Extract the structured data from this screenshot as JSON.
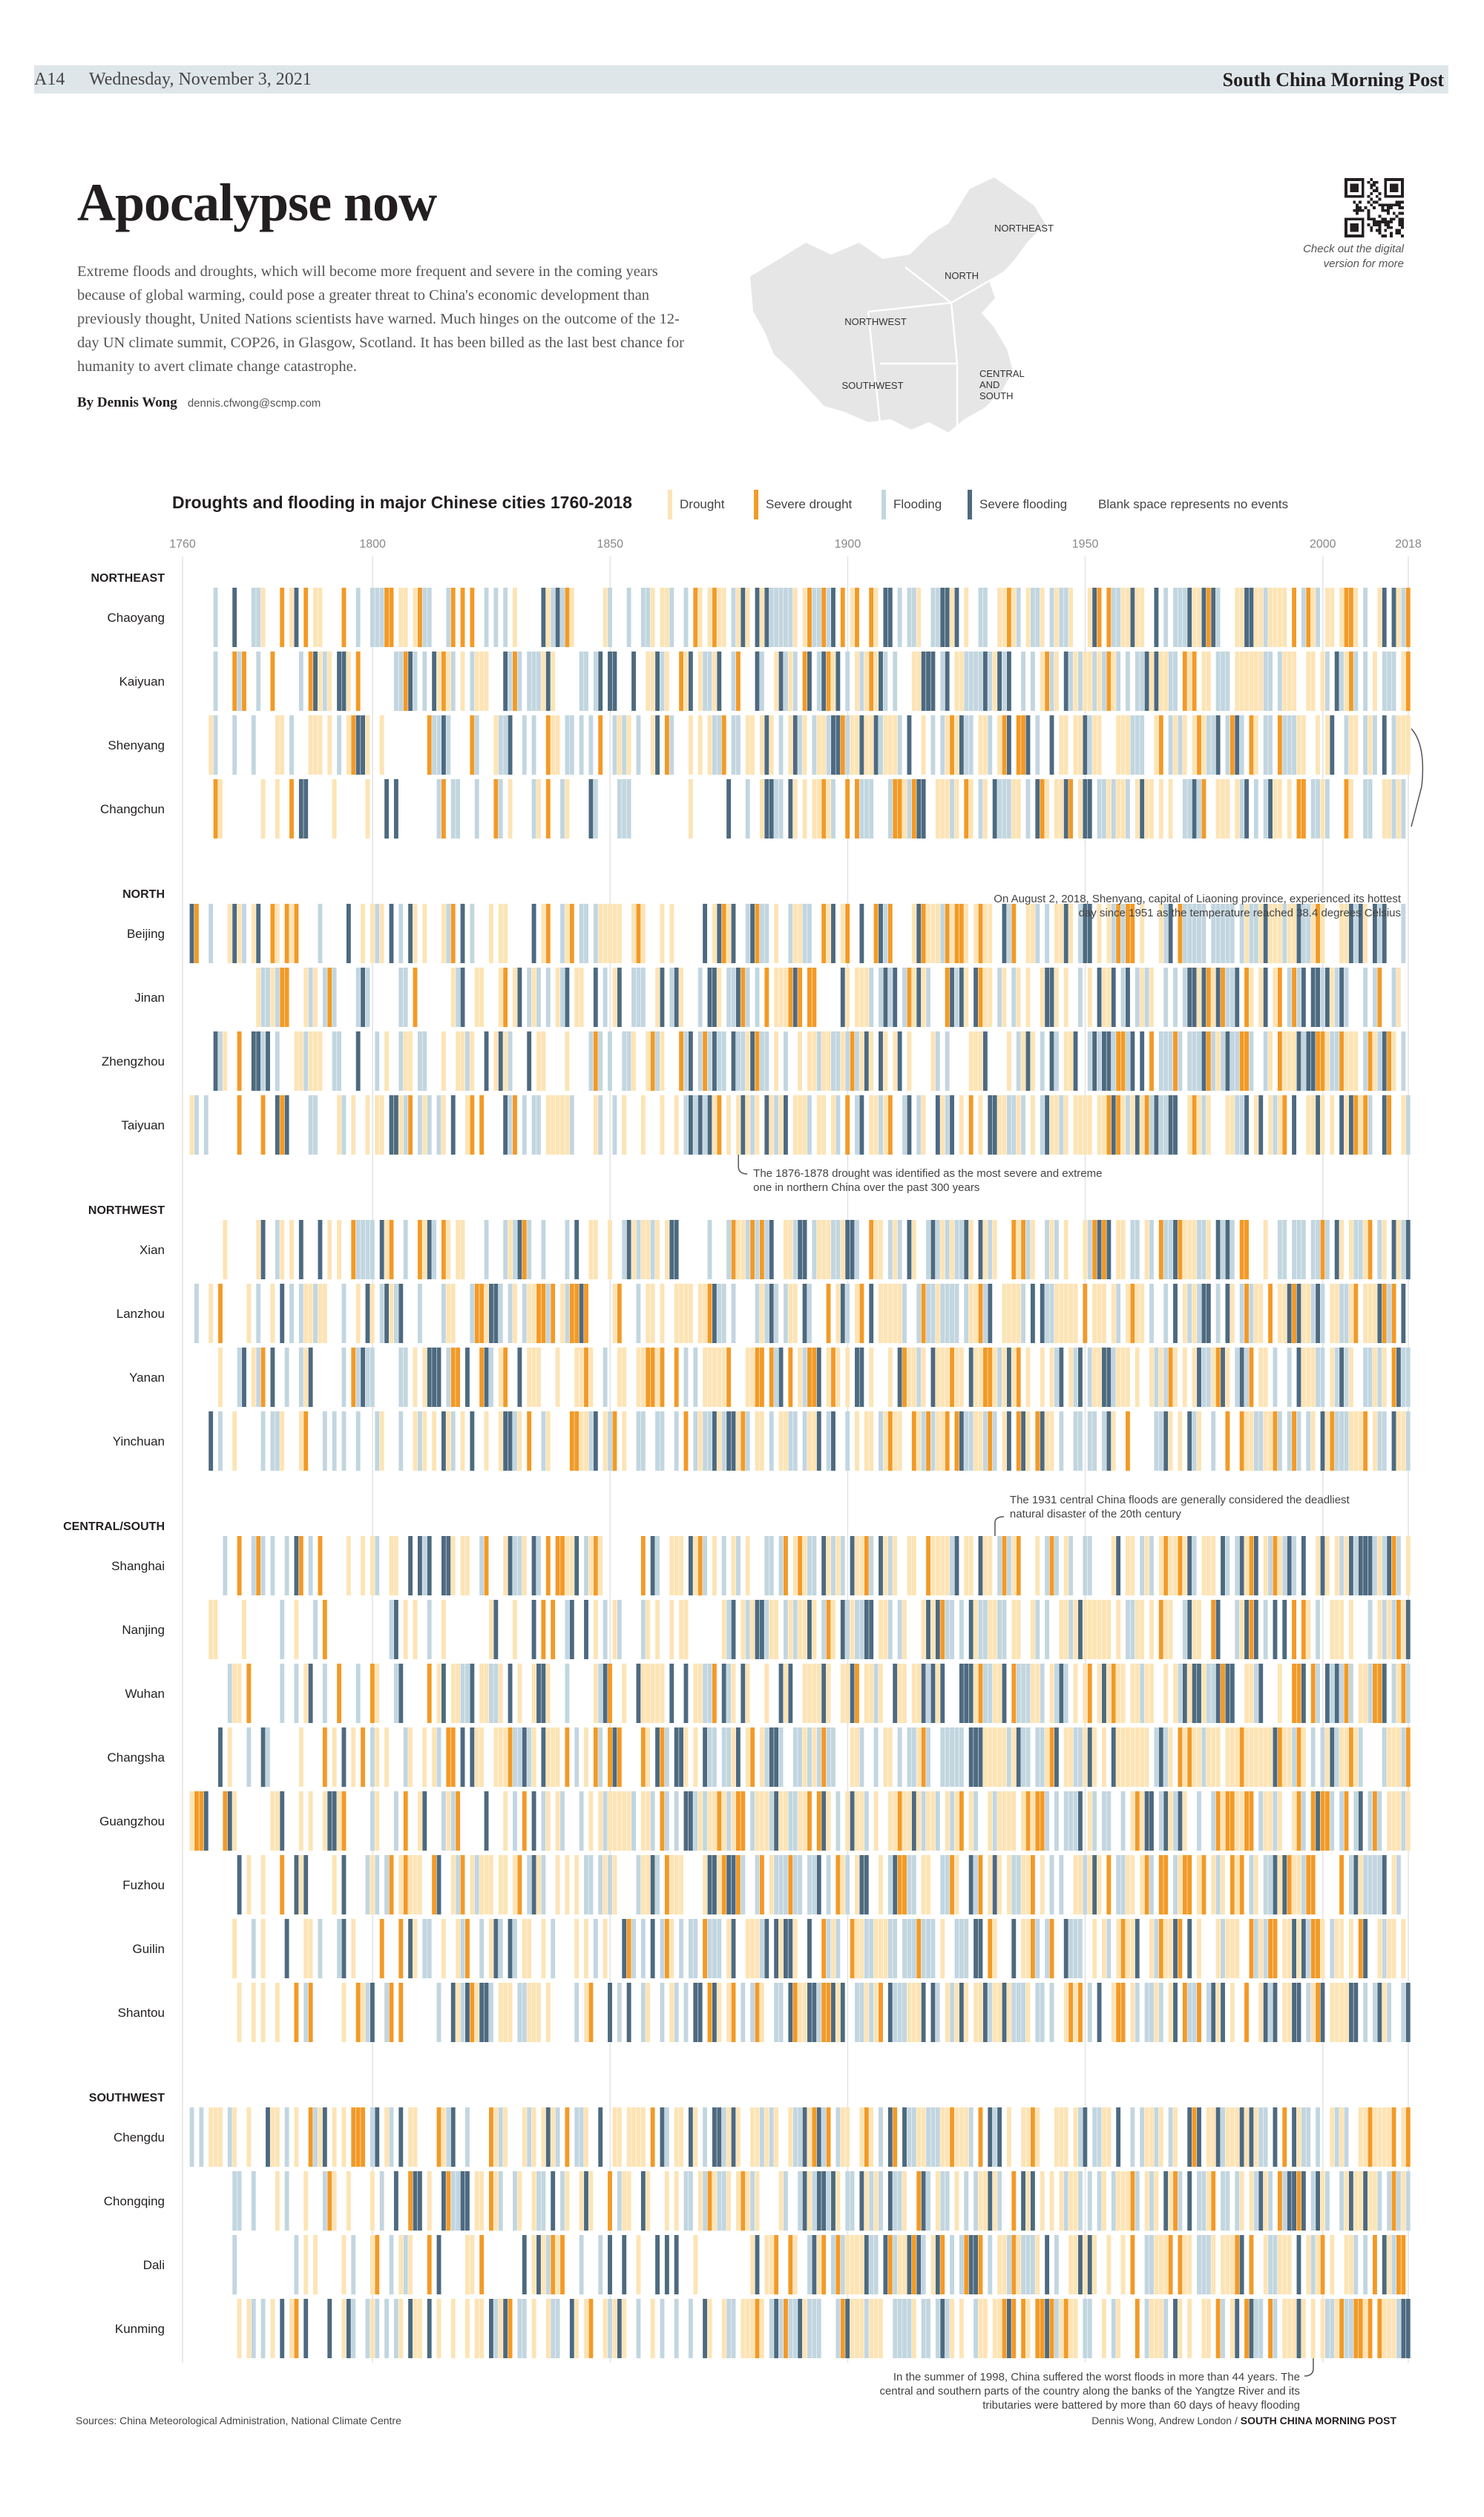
{
  "masthead": {
    "page": "A14",
    "date": "Wednesday, November 3, 2021",
    "paper": "South China Morning Post"
  },
  "headline": "Apocalypse now",
  "intro": "Extreme floods and droughts, which will become more frequent and severe in the coming years because of global warming, could pose a greater threat to China's economic development than previously thought, United Nations scientists have warned. Much hinges on the outcome of the 12-day UN climate summit, COP26, in Glasgow, Scotland. It has been billed as the last best chance for humanity to avert climate change catastrophe.",
  "byline": {
    "author": "By Dennis Wong",
    "email": "dennis.cfwong@scmp.com"
  },
  "map_labels": {
    "northeast": "NORTHEAST",
    "north": "NORTH",
    "northwest": "NORTHWEST",
    "southwest": "SOUTHWEST",
    "central_south": "CENTRAL AND SOUTH"
  },
  "qr_note": "Check out the digital version for more",
  "legend": {
    "drought": "Drought",
    "severe_drought": "Severe drought",
    "flooding": "Flooding",
    "severe_flooding": "Severe flooding",
    "blank_note": "Blank space represents no events"
  },
  "colors": {
    "drought": "#fde4b5",
    "severe_drought": "#f39a26",
    "flooding": "#c2d6e0",
    "severe_flooding": "#4d6a80",
    "gridline": "#e3e3e3",
    "text": "#231f20"
  },
  "sources": "Sources: China Meteorological Administration, National Climate Centre",
  "credit": {
    "names": "Dennis Wong, Andrew London /",
    "paper": "SOUTH CHINA MORNING POST"
  },
  "chart_data": {
    "type": "heatmap",
    "title": "Droughts and flooding in major Chinese cities 1760-2018",
    "x_range": [
      1760,
      2018
    ],
    "x_ticks": [
      1760,
      1800,
      1850,
      1900,
      1950,
      2000,
      2018
    ],
    "categories": [
      "Drought",
      "Severe drought",
      "Flooding",
      "Severe flooding"
    ],
    "regions": [
      {
        "name": "NORTHEAST",
        "cities": [
          "Chaoyang",
          "Kaiyuan",
          "Shenyang",
          "Changchun"
        ]
      },
      {
        "name": "NORTH",
        "cities": [
          "Beijing",
          "Jinan",
          "Zhengzhou",
          "Taiyuan"
        ]
      },
      {
        "name": "NORTHWEST",
        "cities": [
          "Xian",
          "Lanzhou",
          "Yanan",
          "Yinchuan"
        ]
      },
      {
        "name": "CENTRAL/SOUTH",
        "cities": [
          "Shanghai",
          "Nanjing",
          "Wuhan",
          "Changsha",
          "Guangzhou",
          "Fuzhou",
          "Guilin",
          "Shantou"
        ]
      },
      {
        "name": "SOUTHWEST",
        "cities": [
          "Chengdu",
          "Chongqing",
          "Dali",
          "Kunming"
        ]
      }
    ],
    "annotations": [
      {
        "year": 2018,
        "city": "Shenyang",
        "text": "On August 2, 2018, Shenyang, capital of Liaoning province, experienced its hottest day since 1951 as the temperature reached 38.4 degrees Celsius"
      },
      {
        "year": 1877,
        "city": "Taiyuan",
        "text": "The 1876-1878 drought was identified as the most severe and extreme one in northern China over the past 300 years"
      },
      {
        "year": 1931,
        "city": "Shanghai",
        "text": "The 1931 central China floods are generally considered the deadliest natural disaster of the 20th century"
      },
      {
        "year": 1998,
        "city": "Kunming",
        "text": "In the summer of 1998, China suffered the worst floods in more than 44 years. The central and southern parts of the country along the banks of the Yangtze River and its tributaries were battered by more than 60 days of heavy flooding"
      }
    ]
  }
}
